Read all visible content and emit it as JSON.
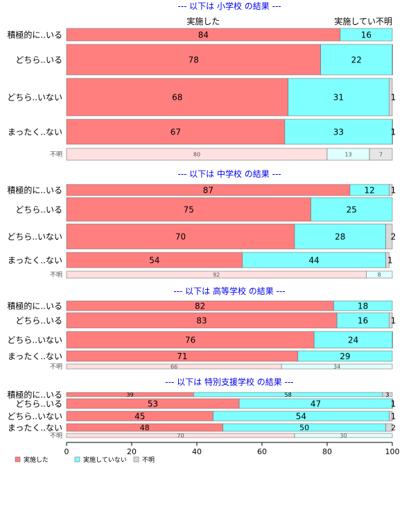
{
  "chart_data": {
    "type": "bar",
    "orientation": "horizontal",
    "stacked": true,
    "xlim": [
      0,
      100
    ],
    "x_ticks": [
      "0",
      "20",
      "40",
      "60",
      "80",
      "100"
    ],
    "legend_position": "bottom-left",
    "legend": [
      {
        "label": "実施した",
        "color": "#ff7f7f"
      },
      {
        "label": "実施していない",
        "color": "#7fffff"
      },
      {
        "label": "不明",
        "color": "#d9d9d9"
      }
    ],
    "column_labels": [
      "実施した",
      "実施してい不明"
    ],
    "panels": [
      {
        "title": "--- 以下は 小学校 の結果 ---",
        "rows": [
          {
            "label": "積極的に..いる",
            "values": [
              84,
              16,
              0
            ],
            "value_labels": [
              "84",
              "16",
              ""
            ]
          },
          {
            "label": "どちら..いる",
            "values": [
              78,
              22,
              0.4
            ],
            "value_labels": [
              "78",
              "22",
              ""
            ]
          },
          {
            "label": "どちら..いない",
            "values": [
              68,
              31,
              1
            ],
            "value_labels": [
              "68",
              "31",
              "1"
            ]
          },
          {
            "label": "まったく..ない",
            "values": [
              67,
              33,
              1
            ],
            "value_labels": [
              "67",
              "33",
              "1"
            ]
          },
          {
            "label": "不明",
            "values": [
              80,
              13,
              7
            ],
            "value_labels": [
              "80",
              "13",
              "7"
            ],
            "faded": true
          }
        ]
      },
      {
        "title": "--- 以下は 中学校 の結果 ---",
        "rows": [
          {
            "label": "積極的に..いる",
            "values": [
              87,
              12,
              1
            ],
            "value_labels": [
              "87",
              "12",
              "1"
            ]
          },
          {
            "label": "どちら..いる",
            "values": [
              75,
              25,
              0
            ],
            "value_labels": [
              "75",
              "25",
              ""
            ]
          },
          {
            "label": "どちら..いない",
            "values": [
              70,
              28,
              2
            ],
            "value_labels": [
              "70",
              "28",
              "2"
            ]
          },
          {
            "label": "まったく..ない",
            "values": [
              54,
              44,
              1
            ],
            "value_labels": [
              "54",
              "44",
              "1"
            ]
          },
          {
            "label": "不明",
            "values": [
              92,
              8,
              0
            ],
            "value_labels": [
              "92",
              "8",
              ""
            ],
            "faded": true
          }
        ]
      },
      {
        "title": "--- 以下は 高等学校 の結果 ---",
        "rows": [
          {
            "label": "積極的に..いる",
            "values": [
              82,
              18,
              0
            ],
            "value_labels": [
              "82",
              "18",
              ""
            ]
          },
          {
            "label": "どちら..いる",
            "values": [
              83,
              16,
              1
            ],
            "value_labels": [
              "83",
              "16",
              "1"
            ]
          },
          {
            "label": "どちら..いない",
            "values": [
              76,
              24,
              0.4
            ],
            "value_labels": [
              "76",
              "24",
              ""
            ]
          },
          {
            "label": "まったく..ない",
            "values": [
              71,
              29,
              0
            ],
            "value_labels": [
              "71",
              "29",
              ""
            ]
          },
          {
            "label": "不明",
            "values": [
              66,
              34,
              0
            ],
            "value_labels": [
              "66",
              "34",
              ""
            ],
            "faded": true
          }
        ]
      },
      {
        "title": "--- 以下は 特別支援学校 の結果 ---",
        "rows": [
          {
            "label": "積極的に..いる",
            "values": [
              39,
              58,
              3
            ],
            "value_labels": [
              "39",
              "58",
              "3"
            ]
          },
          {
            "label": "どちら..いる",
            "values": [
              53,
              47,
              1
            ],
            "value_labels": [
              "53",
              "47",
              "1"
            ]
          },
          {
            "label": "どちら..いない",
            "values": [
              45,
              54,
              1
            ],
            "value_labels": [
              "45",
              "54",
              "1"
            ]
          },
          {
            "label": "まったく..ない",
            "values": [
              48,
              50,
              2
            ],
            "value_labels": [
              "48",
              "50",
              "2"
            ]
          },
          {
            "label": "不明",
            "values": [
              70,
              30,
              0
            ],
            "value_labels": [
              "70",
              "30",
              ""
            ],
            "faded": true
          }
        ]
      }
    ]
  }
}
